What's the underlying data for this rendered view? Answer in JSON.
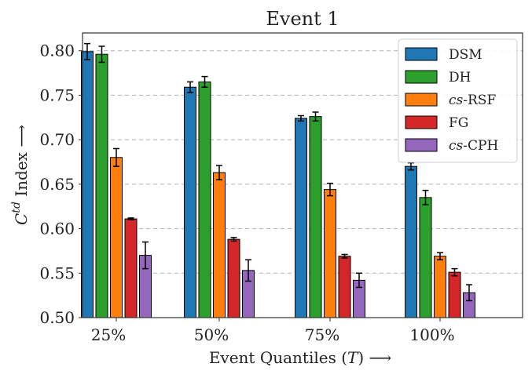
{
  "chart_data": {
    "type": "bar",
    "title": "Event 1",
    "xlabel": "Event Quantiles (T) ⟶",
    "xlabel_parts": {
      "prefix": "Event Quantiles (",
      "var": "T",
      "suffix": ") ⟶"
    },
    "ylabel": "C^td Index ⟶",
    "ylabel_parts": {
      "base": "C",
      "sup": "td",
      "rest": " Index ⟶"
    },
    "categories": [
      "25%",
      "50%",
      "75%",
      "100%"
    ],
    "ylim": [
      0.5,
      0.82
    ],
    "yticks": [
      "0.50",
      "0.55",
      "0.60",
      "0.65",
      "0.70",
      "0.75",
      "0.80"
    ],
    "grid": "horizontal dashed",
    "legend_position": "top-right",
    "series": [
      {
        "name": "DSM",
        "label_italic": "",
        "label_rest": "DSM",
        "color": "#1f77b4",
        "values": [
          0.799,
          0.759,
          0.724,
          0.67
        ],
        "errors": [
          0.009,
          0.006,
          0.003,
          0.004
        ]
      },
      {
        "name": "DH",
        "label_italic": "",
        "label_rest": "DH",
        "color": "#2ca02c",
        "values": [
          0.796,
          0.765,
          0.726,
          0.635
        ],
        "errors": [
          0.009,
          0.006,
          0.005,
          0.008
        ]
      },
      {
        "name": "cs-RSF",
        "label_italic": "cs",
        "label_rest": "-RSF",
        "color": "#ff7f0e",
        "values": [
          0.68,
          0.663,
          0.644,
          0.569
        ],
        "errors": [
          0.01,
          0.008,
          0.007,
          0.004
        ]
      },
      {
        "name": "FG",
        "label_italic": "",
        "label_rest": "FG",
        "color": "#d62728",
        "values": [
          0.611,
          0.588,
          0.569,
          0.551
        ],
        "errors": [
          0.001,
          0.002,
          0.002,
          0.004
        ]
      },
      {
        "name": "cs-CPH",
        "label_italic": "cs",
        "label_rest": "-CPH",
        "color": "#9467bd",
        "values": [
          0.57,
          0.553,
          0.542,
          0.528
        ],
        "errors": [
          0.015,
          0.012,
          0.008,
          0.009
        ]
      }
    ]
  }
}
